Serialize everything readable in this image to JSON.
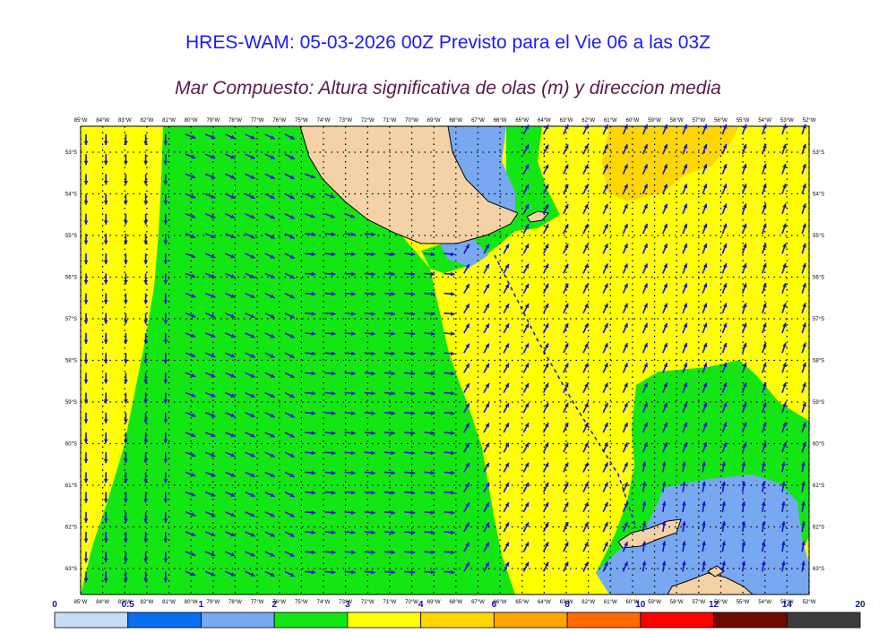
{
  "title": "HRES-WAM: 05-03-2026 00Z Previsto para el Vie 06 a las 03Z",
  "subtitle": "Mar Compuesto: Altura significativa de olas (m) y direccion media",
  "lon_labels": [
    "85°W",
    "84°W",
    "83°W",
    "82°W",
    "81°W",
    "80°W",
    "79°W",
    "78°W",
    "77°W",
    "76°W",
    "75°W",
    "74°W",
    "73°W",
    "72°W",
    "71°W",
    "70°W",
    "69°W",
    "68°W",
    "67°W",
    "66°W",
    "65°W",
    "64°W",
    "63°W",
    "62°W",
    "61°W",
    "60°W",
    "59°W",
    "58°W",
    "57°W",
    "56°W",
    "55°W",
    "54°W",
    "53°W",
    "52°W"
  ],
  "lat_labels": [
    "53°S",
    "54°S",
    "55°S",
    "56°S",
    "57°S",
    "58°S",
    "59°S",
    "60°S",
    "61°S",
    "62°S",
    "63°S"
  ],
  "colorbar": {
    "ticks": [
      "0",
      "0.5",
      "1",
      "2",
      "3",
      "4",
      "6",
      "8",
      "10",
      "12",
      "14",
      "20"
    ],
    "colors": [
      "#c8dcf5",
      "#0a6ef0",
      "#78a8f0",
      "#14e614",
      "#ffff00",
      "#ffd700",
      "#ffa500",
      "#ff6a00",
      "#ff0000",
      "#6e0a00",
      "#3c3c3c"
    ]
  },
  "colors": {
    "land": "#f5d2a5",
    "arrow": "#1414c8",
    "title": "#1a1aff",
    "subtitle": "#5a1a4a"
  }
}
